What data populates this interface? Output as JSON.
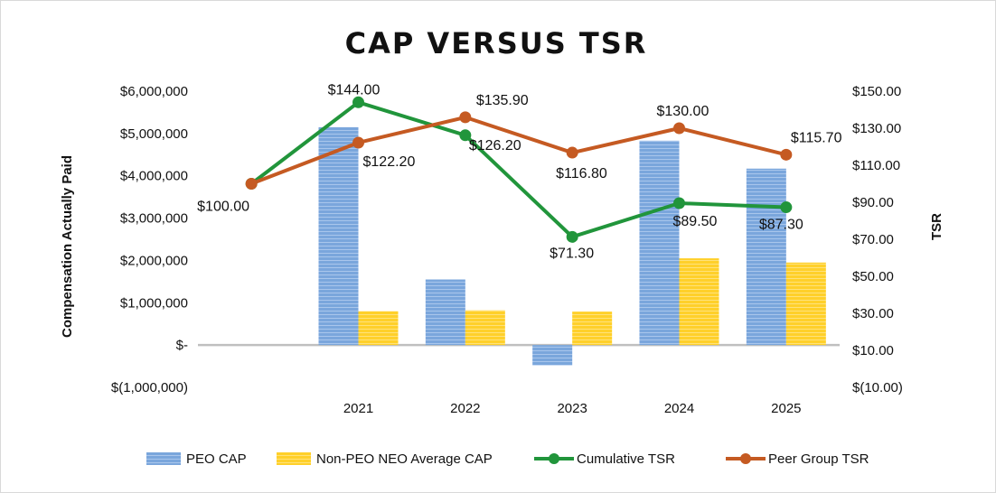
{
  "chart_data": {
    "type": "bar",
    "title": "CAP VERSUS TSR",
    "ylabel": "Compensation Actually Paid",
    "y2label": "TSR",
    "ylim": [
      -1000000,
      6000000
    ],
    "y2lim": [
      -10,
      150
    ],
    "y_ticks": [
      "$6,000,000",
      "$5,000,000",
      "$4,000,000",
      "$3,000,000",
      "$2,000,000",
      "$1,000,000",
      "$-",
      "$(1,000,000)"
    ],
    "y_tick_values": [
      6000000,
      5000000,
      4000000,
      3000000,
      2000000,
      1000000,
      0,
      -1000000
    ],
    "y2_ticks": [
      "$150.00",
      "$130.00",
      "$110.00",
      "$90.00",
      "$70.00",
      "$50.00",
      "$30.00",
      "$10.00",
      "$(10.00)"
    ],
    "y2_tick_values": [
      150,
      130,
      110,
      90,
      70,
      50,
      30,
      10,
      -10
    ],
    "categories": [
      "",
      "2021",
      "2022",
      "2023",
      "2024",
      "2025"
    ],
    "bar_series": [
      {
        "name": "PEO CAP",
        "color": "#7aa6dc",
        "values": [
          null,
          5150000,
          1550000,
          -480000,
          4830000,
          4170000
        ]
      },
      {
        "name": "Non-PEO NEO Average CAP",
        "color": "#ffd02a",
        "values": [
          null,
          800000,
          820000,
          790000,
          2050000,
          1950000
        ]
      }
    ],
    "line_series": [
      {
        "name": "Cumulative TSR",
        "color": "#21953b",
        "values": [
          100,
          144,
          126.2,
          71.3,
          89.5,
          87.3
        ],
        "labels": [
          "",
          "$144.00",
          "$126.20",
          "$71.30",
          "$89.50",
          "$87.30"
        ]
      },
      {
        "name": "Peer Group TSR",
        "color": "#c55a22",
        "values": [
          100,
          122.2,
          135.9,
          116.8,
          130,
          115.7
        ],
        "labels": [
          "$100.00",
          "$122.20",
          "$135.90",
          "$116.80",
          "$130.00",
          "$115.70"
        ]
      }
    ],
    "legend_position": "bottom"
  }
}
